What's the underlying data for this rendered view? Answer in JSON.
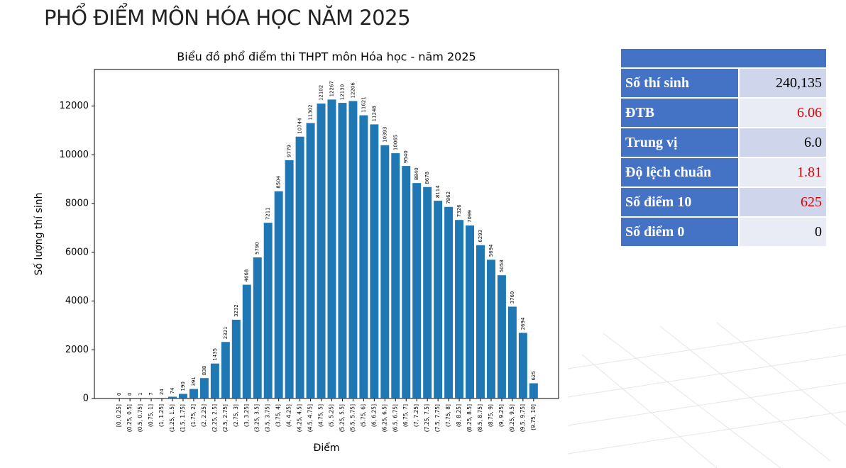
{
  "header": {
    "title": "PHỔ ĐIỂM MÔN HÓA HỌC NĂM 2025"
  },
  "chart_data": {
    "type": "bar",
    "title": "Biểu đồ phổ điểm thi THPT môn Hóa học - năm 2025",
    "x_label": "Điểm",
    "y_label": "Số lượng thí sinh",
    "categories": [
      "[0, 0.25]",
      "(0.25, 0.5]",
      "(0.5, 0.75]",
      "(0.75, 1]",
      "(1, 1.25]",
      "(1.25, 1.5]",
      "(1.5, 1.75]",
      "(1.75, 2]",
      "(2, 2.25]",
      "(2.25, 2.5]",
      "(2.5, 2.75]",
      "(2.75, 3]",
      "(3, 3.25]",
      "(3.25, 3.5]",
      "(3.5, 3.75]",
      "(3.75, 4]",
      "(4, 4.25]",
      "(4.25, 4.5]",
      "(4.5, 4.75]",
      "(4.75, 5]",
      "(5, 5.25]",
      "(5.25, 5.5]",
      "(5.5, 5.75]",
      "(5.75, 6]",
      "(6, 6.25]",
      "(6.25, 6.5]",
      "(6.5, 6.75]",
      "(6.75, 7]",
      "(7, 7.25]",
      "(7.25, 7.5]",
      "(7.5, 7.75]",
      "(7.75, 8]",
      "(8, 8.25]",
      "(8.25, 8.5]",
      "(8.5, 8.75]",
      "(8.75, 9]",
      "(9, 9.25]",
      "(9.25, 9.5]",
      "(9.5, 9.75]",
      "(9.75, 10]"
    ],
    "values": [
      0,
      0,
      1,
      7,
      24,
      74,
      190,
      391,
      838,
      1435,
      2321,
      3232,
      4668,
      5790,
      7211,
      8504,
      9779,
      10744,
      11302,
      12102,
      12267,
      12130,
      12206,
      11621,
      11248,
      10393,
      10065,
      9540,
      8840,
      8678,
      8114,
      7862,
      7326,
      7099,
      6293,
      5694,
      5058,
      3769,
      2694,
      625
    ],
    "color": "#1f77b4",
    "ylim": [
      0,
      13500
    ],
    "yticks": [
      0,
      2000,
      4000,
      6000,
      8000,
      10000,
      12000
    ],
    "grid": false
  },
  "table": {
    "rows": [
      {
        "label": "Số thí sinh",
        "value": "240,135",
        "color": "#000000"
      },
      {
        "label": "ĐTB",
        "value": "6.06",
        "color": "#e00000"
      },
      {
        "label": "Trung vị",
        "value": "6.0",
        "color": "#000000"
      },
      {
        "label": "Độ lệch chuẩn",
        "value": "1.81",
        "color": "#e00000"
      },
      {
        "label": "Số điểm 10",
        "value": "625",
        "color": "#e00000"
      },
      {
        "label": "Số điểm 0",
        "value": "0",
        "color": "#000000"
      }
    ]
  }
}
